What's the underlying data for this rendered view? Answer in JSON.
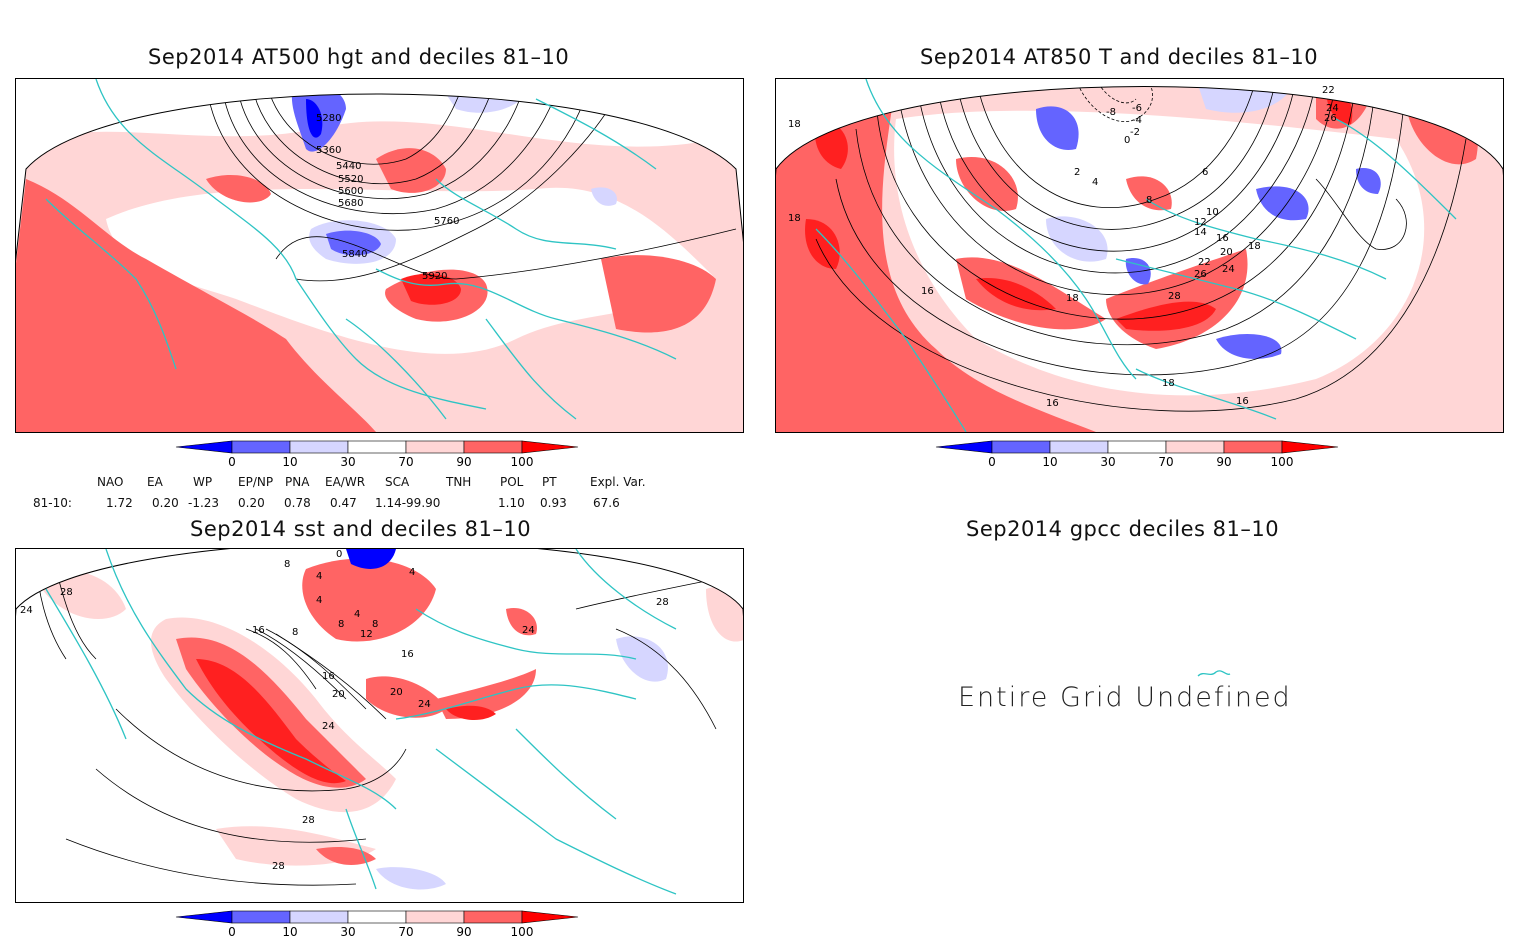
{
  "panels": [
    {
      "title": "Sep2014 AT500 hgt and deciles 81–10",
      "contour_labels": [
        "5280",
        "5360",
        "5440",
        "5520",
        "5600",
        "5680",
        "5760",
        "5840",
        "5920"
      ]
    },
    {
      "title": "Sep2014 AT850 T and deciles 81–10",
      "contour_labels": [
        "-8",
        "-6",
        "-4",
        "-2",
        "0",
        "2",
        "4",
        "6",
        "8",
        "10",
        "12",
        "14",
        "16",
        "18",
        "20",
        "22",
        "24",
        "26",
        "28",
        "16",
        "18",
        "18",
        "18",
        "18",
        "16",
        "16",
        "22",
        "24",
        "26"
      ]
    },
    {
      "title": "Sep2014 sst and deciles 81–10",
      "contour_labels": [
        "24",
        "28",
        "16",
        "8",
        "4",
        "8",
        "4",
        "8",
        "12",
        "16",
        "16",
        "20",
        "20",
        "24",
        "24",
        "24",
        "28",
        "28",
        "28",
        "0",
        "4",
        "8",
        "4"
      ]
    },
    {
      "title": "Sep2014 gpcc deciles 81–10",
      "message": "Entire Grid Undefined"
    }
  ],
  "colorbar": {
    "ticks": [
      "0",
      "10",
      "30",
      "70",
      "90",
      "100"
    ],
    "colors": [
      "#0000ff",
      "#6464ff",
      "#d6d6ff",
      "#ffffff",
      "#ffd6d6",
      "#ff6464",
      "#ff0000"
    ]
  },
  "indices": {
    "headers": [
      "NAO",
      "EA",
      "WP",
      "EP/NP",
      "PNA",
      "EA/WR",
      "SCA",
      "TNH",
      "POL",
      "PT",
      "Expl. Var."
    ],
    "row_label": "81-10:",
    "values": [
      "1.72",
      "0.20",
      "-1.23",
      "0.20",
      "0.78",
      "0.47",
      "1.14",
      "-99.90",
      "1.10",
      "0.93",
      "67.6"
    ]
  }
}
